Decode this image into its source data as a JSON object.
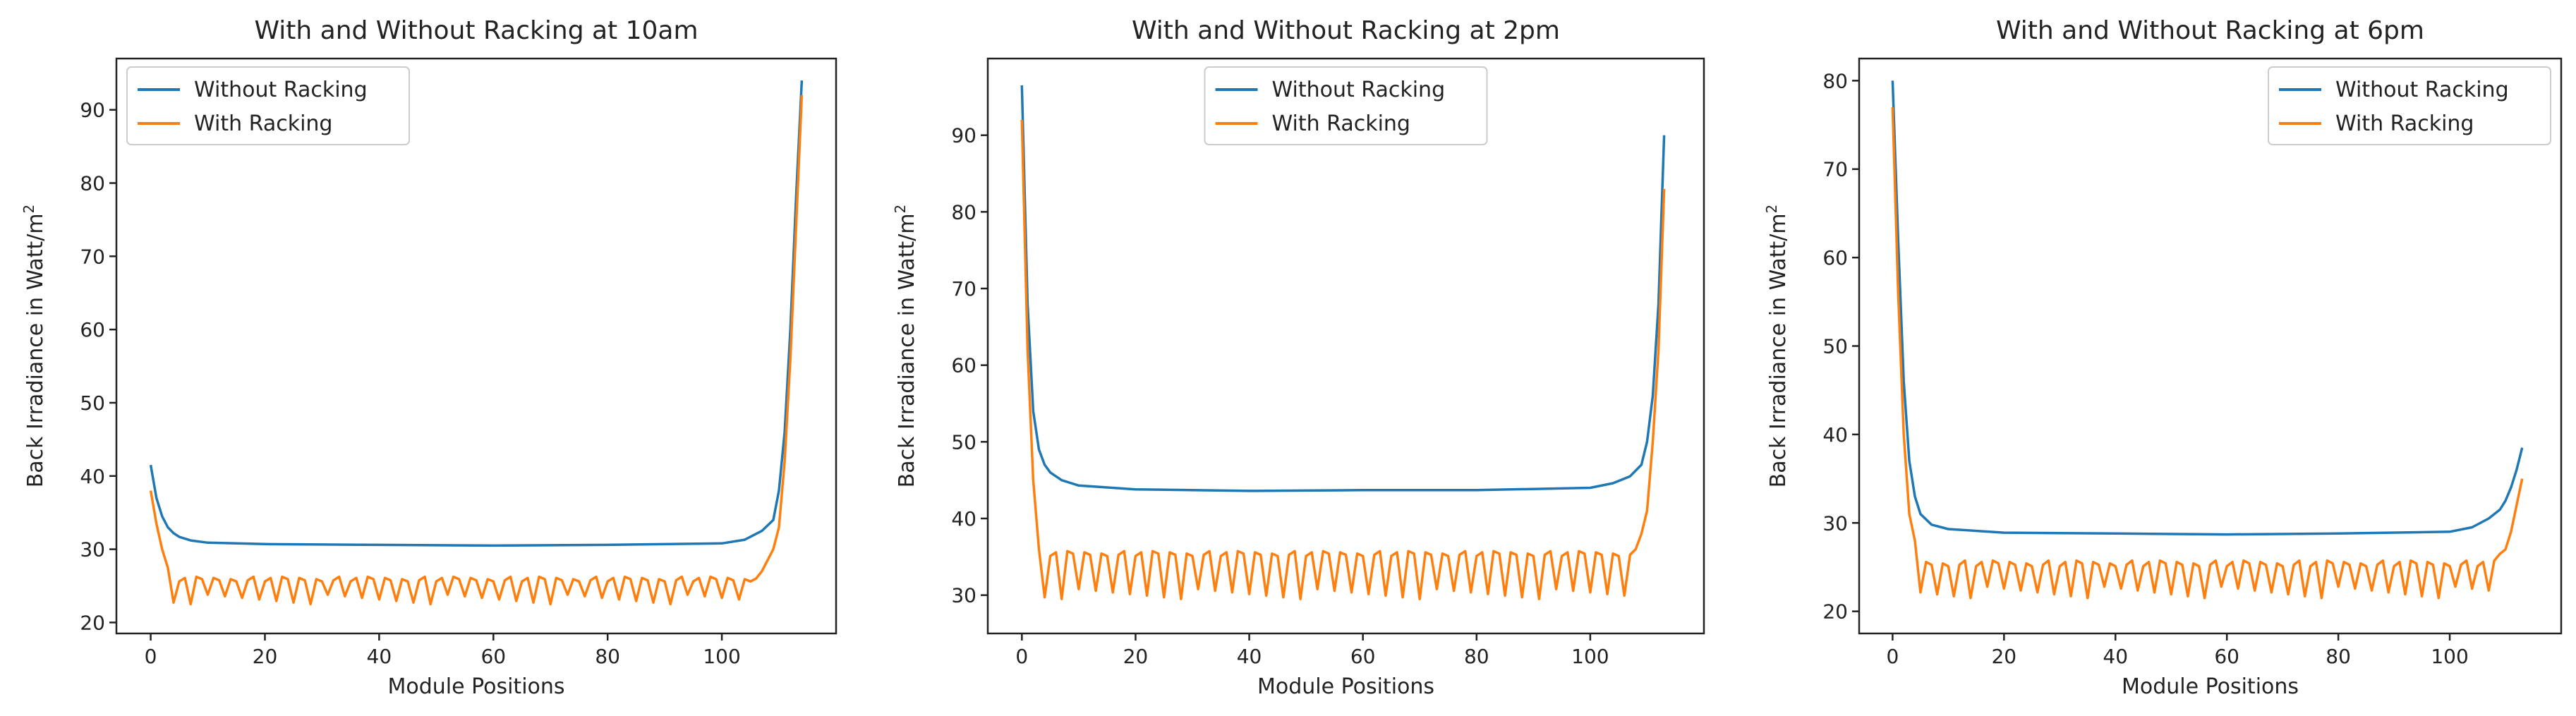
{
  "chart_data": [
    {
      "type": "line",
      "title": "With and Without Racking at 10am",
      "xlabel": "Module Positions",
      "ylabel_main": "Back Irradiance in Watt/m",
      "ylabel_sup": "2",
      "xlim": [
        -6,
        120
      ],
      "ylim": [
        18.5,
        97
      ],
      "xticks": [
        0,
        20,
        40,
        60,
        80,
        100
      ],
      "yticks": [
        20,
        30,
        40,
        50,
        60,
        70,
        80,
        90
      ],
      "legend_position": "upper-left",
      "series": [
        {
          "name": "Without Racking",
          "color": "#1f77b4",
          "points": [
            [
              0,
              41.5
            ],
            [
              1,
              37
            ],
            [
              2,
              34.5
            ],
            [
              3,
              33
            ],
            [
              4,
              32.2
            ],
            [
              5,
              31.7
            ],
            [
              7,
              31.2
            ],
            [
              10,
              30.9
            ],
            [
              20,
              30.7
            ],
            [
              40,
              30.6
            ],
            [
              60,
              30.5
            ],
            [
              80,
              30.6
            ],
            [
              100,
              30.8
            ],
            [
              104,
              31.3
            ],
            [
              107,
              32.5
            ],
            [
              109,
              34
            ],
            [
              110,
              38
            ],
            [
              111,
              46
            ],
            [
              112,
              60
            ],
            [
              113,
              78
            ],
            [
              114,
              94
            ]
          ]
        },
        {
          "name": "With Racking",
          "color": "#ff7f0e",
          "base": 26,
          "dip": 22.5,
          "period": 3,
          "dip_start": 4,
          "dip_end": 106,
          "points": [
            [
              0,
              38
            ],
            [
              1,
              33.5
            ],
            [
              2,
              30
            ],
            [
              3,
              27.5
            ],
            [
              106,
              26
            ],
            [
              107,
              27
            ],
            [
              108,
              28.5
            ],
            [
              109,
              30
            ],
            [
              110,
              33
            ],
            [
              111,
              42
            ],
            [
              112,
              56
            ],
            [
              113,
              74
            ],
            [
              114,
              92
            ]
          ]
        }
      ]
    },
    {
      "type": "line",
      "title": "With and Without Racking at 2pm",
      "xlabel": "Module Positions",
      "ylabel_main": "Back Irradiance in Watt/m",
      "ylabel_sup": "2",
      "xlim": [
        -6,
        120
      ],
      "ylim": [
        25,
        100
      ],
      "xticks": [
        0,
        20,
        40,
        60,
        80,
        100
      ],
      "yticks": [
        30,
        40,
        50,
        60,
        70,
        80,
        90
      ],
      "legend_position": "upper-center",
      "series": [
        {
          "name": "Without Racking",
          "color": "#1f77b4",
          "points": [
            [
              0,
              96.5
            ],
            [
              1,
              68
            ],
            [
              2,
              54
            ],
            [
              3,
              49
            ],
            [
              4,
              47
            ],
            [
              5,
              46
            ],
            [
              7,
              45
            ],
            [
              10,
              44.3
            ],
            [
              20,
              43.8
            ],
            [
              40,
              43.6
            ],
            [
              60,
              43.7
            ],
            [
              80,
              43.7
            ],
            [
              100,
              44
            ],
            [
              104,
              44.6
            ],
            [
              107,
              45.5
            ],
            [
              109,
              47
            ],
            [
              110,
              50
            ],
            [
              111,
              56
            ],
            [
              112,
              68
            ],
            [
              113,
              90
            ]
          ]
        },
        {
          "name": "With Racking",
          "color": "#ff7f0e",
          "base": 35.5,
          "dip": 29.5,
          "period": 3,
          "dip_start": 4,
          "dip_end": 108,
          "points": [
            [
              0,
              92
            ],
            [
              1,
              62
            ],
            [
              2,
              45
            ],
            [
              3,
              36
            ],
            [
              108,
              36
            ],
            [
              109,
              38
            ],
            [
              110,
              41
            ],
            [
              111,
              50
            ],
            [
              112,
              62
            ],
            [
              113,
              83
            ]
          ]
        }
      ]
    },
    {
      "type": "line",
      "title": "With and Without Racking at 6pm",
      "xlabel": "Module Positions",
      "ylabel_main": "Back Irradiance in Watt/m",
      "ylabel_sup": "2",
      "xlim": [
        -6,
        120
      ],
      "ylim": [
        17.5,
        82.5
      ],
      "xticks": [
        0,
        20,
        40,
        60,
        80,
        100
      ],
      "yticks": [
        20,
        30,
        40,
        50,
        60,
        70,
        80
      ],
      "legend_position": "upper-right",
      "series": [
        {
          "name": "Without Racking",
          "color": "#1f77b4",
          "points": [
            [
              0,
              80
            ],
            [
              1,
              62
            ],
            [
              2,
              46
            ],
            [
              3,
              37
            ],
            [
              4,
              33
            ],
            [
              5,
              31
            ],
            [
              7,
              29.8
            ],
            [
              10,
              29.3
            ],
            [
              20,
              28.9
            ],
            [
              40,
              28.8
            ],
            [
              60,
              28.7
            ],
            [
              80,
              28.8
            ],
            [
              100,
              29
            ],
            [
              104,
              29.5
            ],
            [
              107,
              30.5
            ],
            [
              109,
              31.5
            ],
            [
              110,
              32.5
            ],
            [
              111,
              34
            ],
            [
              112,
              36
            ],
            [
              113,
              38.5
            ]
          ]
        },
        {
          "name": "With Racking",
          "color": "#ff7f0e",
          "base": 25.5,
          "dip": 21.5,
          "period": 3,
          "dip_start": 5,
          "dip_end": 109,
          "points": [
            [
              0,
              77
            ],
            [
              1,
              56
            ],
            [
              2,
              40
            ],
            [
              3,
              31
            ],
            [
              4,
              28
            ],
            [
              109,
              26.5
            ],
            [
              110,
              27
            ],
            [
              111,
              29
            ],
            [
              112,
              32
            ],
            [
              113,
              35
            ]
          ]
        }
      ]
    }
  ]
}
